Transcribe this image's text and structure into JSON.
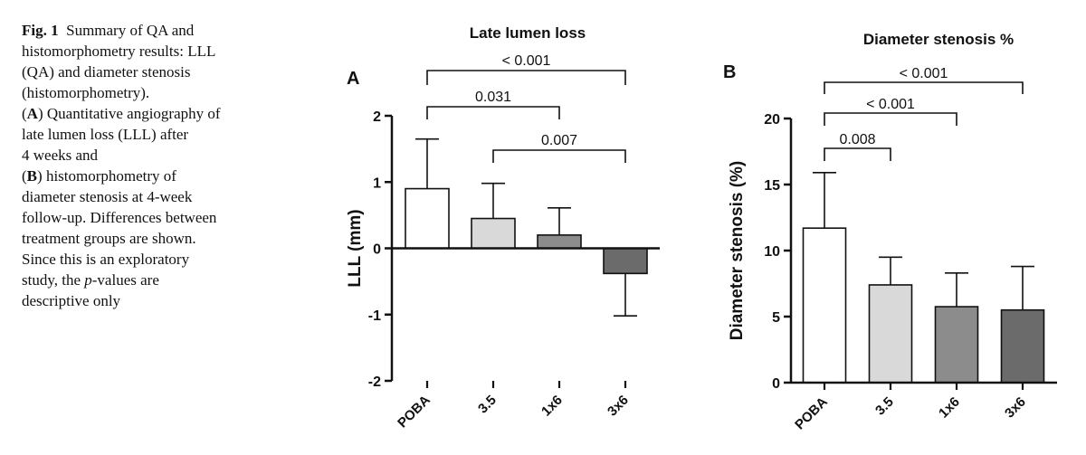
{
  "caption": {
    "fig_label": "Fig. 1",
    "title_line1": "Summary of QA and",
    "line2": "histomorphometry results: LLL",
    "line3": "(QA) and diameter stenosis",
    "line4": "(histomorphometry).",
    "a_label": "A",
    "a_text": "Quantitative angiography of",
    "line6": "late lumen loss (LLL) after",
    "line7": "4 weeks and",
    "b_label": "B",
    "b_text": "histomorphometry of",
    "line9": "diameter stenosis at 4-week",
    "line10": "follow-up. Differences between",
    "line11": "treatment groups are shown.",
    "line12": "Since this is an exploratory",
    "line13_pre": "study, the ",
    "line13_p": "p",
    "line13_post": "-values are",
    "line14": "descriptive only"
  },
  "colors": {
    "bar_fills": [
      "#ffffff",
      "#d9d9d9",
      "#8c8c8c",
      "#6b6b6b"
    ],
    "stroke": "#111111"
  },
  "chart_data": [
    {
      "type": "bar",
      "panel": "A",
      "title": "Late lumen loss",
      "ylabel": "LLL (mm)",
      "xlabel": "",
      "ylim": [
        -2,
        2
      ],
      "yticks": [
        2,
        1,
        0,
        -1,
        -2
      ],
      "ytick_labels": [
        "2",
        "1",
        "0",
        "-1",
        "-2"
      ],
      "categories": [
        "POBA",
        "3.5",
        "1x6",
        "3x6"
      ],
      "values": [
        0.9,
        0.45,
        0.2,
        -0.38
      ],
      "errors": [
        0.75,
        0.53,
        0.41,
        0.64
      ],
      "comparisons": [
        {
          "from": 0,
          "to": 3,
          "label": "< 0.001"
        },
        {
          "from": 0,
          "to": 2,
          "label": "0.031"
        },
        {
          "from": 1,
          "to": 3,
          "label": "0.007"
        }
      ]
    },
    {
      "type": "bar",
      "panel": "B",
      "title": "Diameter stenosis %",
      "ylabel": "Diameter stenosis (%)",
      "xlabel": "",
      "ylim": [
        0,
        20
      ],
      "yticks": [
        20,
        15,
        10,
        5,
        0
      ],
      "ytick_labels": [
        "20",
        "15",
        "10",
        "5",
        "0"
      ],
      "categories": [
        "POBA",
        "3.5",
        "1x6",
        "3x6"
      ],
      "values": [
        11.7,
        7.4,
        5.75,
        5.5
      ],
      "errors": [
        4.2,
        2.1,
        2.55,
        3.3
      ],
      "comparisons": [
        {
          "from": 0,
          "to": 3,
          "label": "< 0.001"
        },
        {
          "from": 0,
          "to": 2,
          "label": "< 0.001"
        },
        {
          "from": 0,
          "to": 1,
          "label": "0.008"
        }
      ]
    }
  ]
}
